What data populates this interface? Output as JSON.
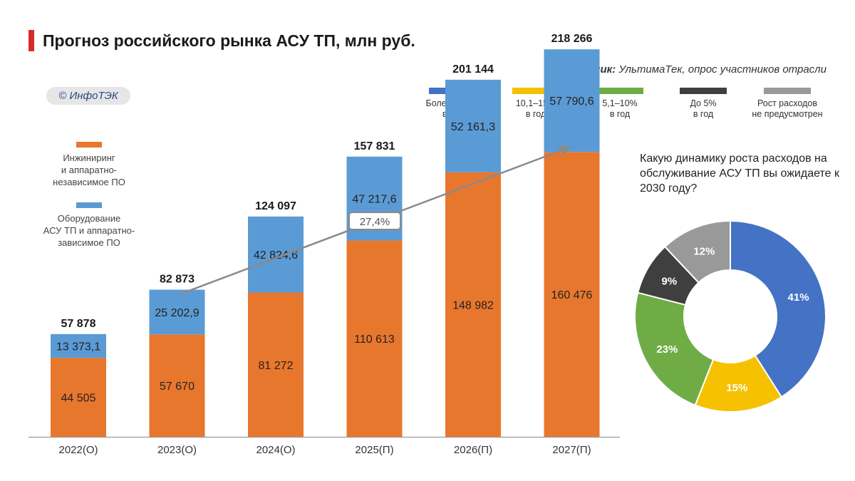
{
  "header": {
    "title": "Прогноз российского рынка АСУ ТП, млн руб.",
    "source_label": "Источник:",
    "source_text": "УльтимаТек, опрос участников отрасли",
    "badge": "© ИнфоТЭК"
  },
  "bar_legend": [
    {
      "label_line1": "Инжиниринг",
      "label_line2": "и аппаратно-",
      "label_line3": "независимое ПО",
      "color": "#e8772e"
    },
    {
      "label_line1": "Оборудование",
      "label_line2": "АСУ ТП и аппаратно-",
      "label_line3": "зависимое ПО",
      "color": "#5b9bd5"
    }
  ],
  "pie_legend": [
    {
      "line1": "Более 15,1%",
      "line2": "в год",
      "color": "#4472c4"
    },
    {
      "line1": "10,1–15%",
      "line2": "в год",
      "color": "#f5c100"
    },
    {
      "line1": "5,1–10%",
      "line2": "в год",
      "color": "#6fac46"
    },
    {
      "line1": "До 5%",
      "line2": "в год",
      "color": "#3f3f3f"
    },
    {
      "line1": "Рост расходов",
      "line2": "не предусмотрен",
      "color": "#999999"
    }
  ],
  "chart_data": [
    {
      "type": "bar",
      "stacked": true,
      "categories": [
        "2022(О)",
        "2023(О)",
        "2024(О)",
        "2025(П)",
        "2026(П)",
        "2027(П)"
      ],
      "series": [
        {
          "name": "Инжиниринг и аппаратно-независимое ПО",
          "values": [
            44505,
            57670,
            81272,
            110613,
            148982,
            160476
          ],
          "labels": [
            "44 505",
            "57 670",
            "81 272",
            "110 613",
            "148 982",
            "160 476"
          ],
          "color": "#e8772e"
        },
        {
          "name": "Оборудование АСУ ТП и аппаратно-зависимое ПО",
          "values": [
            13373.1,
            25202.9,
            42824.6,
            47217.6,
            52161.3,
            57790.6
          ],
          "labels": [
            "13 373,1",
            "25 202,9",
            "42 824,6",
            "47 217,6",
            "52 161,3",
            "57 790,6"
          ],
          "color": "#5b9bd5"
        }
      ],
      "totals": [
        "57 878",
        "82 873",
        "124 097",
        "157 831",
        "201 144",
        "218 266"
      ],
      "ylim": [
        0,
        230000
      ],
      "annotation": "27,4%",
      "grid": false
    },
    {
      "type": "pie",
      "title": "Какую динамику роста расходов на обслуживание АСУ ТП вы ожидаете к 2030 году?",
      "labels": [
        "Более 15,1% в год",
        "10,1–15% в год",
        "5,1–10% в год",
        "До 5% в год",
        "Рост расходов не предусмотрен"
      ],
      "values": [
        41,
        15,
        23,
        9,
        12
      ],
      "value_labels": [
        "41%",
        "15%",
        "23%",
        "9%",
        "12%"
      ],
      "colors": [
        "#4472c4",
        "#f5c100",
        "#6fac46",
        "#3f3f3f",
        "#999999"
      ]
    }
  ]
}
